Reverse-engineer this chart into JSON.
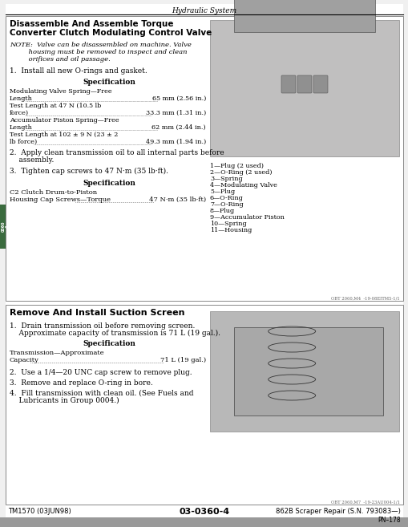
{
  "page_title": "Hydraulic System",
  "section1_title_line1": "Disassemble And Assemble Torque",
  "section1_title_line2": "Converter Clutch Modulating Control Valve",
  "section1_note_line1": "NOTE:  Valve can be disassembled on machine. Valve",
  "section1_note_line2": "         housing must be removed to inspect and clean",
  "section1_note_line3": "         orifices and oil passage.",
  "section1_step1": "1.  Install all new O-rings and gasket.",
  "spec_label": "Specification",
  "spec1_items": [
    [
      "Modulating Valve Spring—Free",
      ""
    ],
    [
      "Length",
      "65 mm (2.56 in.)"
    ],
    [
      "Test Length at 47 N (10.5 lb",
      ""
    ],
    [
      "force)",
      "33.3 mm (1.31 in.)"
    ],
    [
      "Accumulator Piston Spring—Free",
      ""
    ],
    [
      "Length",
      "62 mm (2.44 in.)"
    ],
    [
      "Test Length at 102 ± 9 N (23 ± 2",
      ""
    ],
    [
      "lb force)",
      "49.3 mm (1.94 in.)"
    ]
  ],
  "section1_step2_line1": "2.  Apply clean transmission oil to all internal parts before",
  "section1_step2_line2": "    assembly.",
  "section1_step3": "3.  Tighten cap screws to 47 N·m (35 lb·ft).",
  "spec2_label": "Specification",
  "spec2_head": "C2 Clutch Drum-to-Piston",
  "spec2_item_label": "Housing Cap Screws—Torque",
  "spec2_item_value": "47 N·m (35 lb·ft)",
  "legend_items": [
    "1—Plug (2 used)",
    "2—O-Ring (2 used)",
    "3—Spring",
    "4—Modulating Valve",
    "5—Plug",
    "6—O-Ring",
    "7—O-Ring",
    "8—Plug",
    "9—Accumulator Piston",
    "10—Spring",
    "11—Housing"
  ],
  "section2_title": "Remove And Install Suction Screen",
  "section2_step1_line1": "1.  Drain transmission oil before removing screen.",
  "section2_step1_line2": "    Approximate capacity of transmission is 71 L (19 gal.).",
  "spec3_label": "Specification",
  "spec3_head": "Transmission—Approximate",
  "spec3_item_label": "Capacity",
  "spec3_item_value": "71 L (19 gal.)",
  "section2_step2": "2.  Use a 1/4—20 UNC cap screw to remove plug.",
  "section2_step3": "3.  Remove and replace O-ring in bore.",
  "section2_step4_line1": "4.  Fill transmission with clean oil. (See Fuels and",
  "section2_step4_line2": "    Lubricants in Group 0004.)",
  "footer_left": "TM1570 (03JUN98)",
  "footer_center": "03-0360-4",
  "footer_right": "862B Scraper Repair (S.N. 793083—)",
  "footer_pn": "PN–178",
  "tab_line1": "03",
  "tab_line2": "0360",
  "tab_line3": "4",
  "page_bg": "#f0f0f0",
  "content_bg": "#ffffff",
  "tab_color": "#3a6b3e",
  "footer_bg": "#999999",
  "img1_bg": "#c0bfbf",
  "img2_bg": "#b8b8b8"
}
